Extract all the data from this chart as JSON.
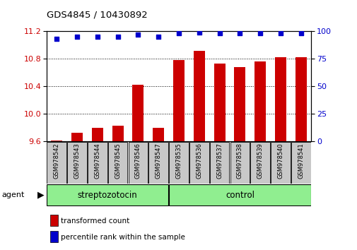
{
  "title": "GDS4845 / 10430892",
  "samples": [
    "GSM978542",
    "GSM978543",
    "GSM978544",
    "GSM978545",
    "GSM978546",
    "GSM978547",
    "GSM978535",
    "GSM978536",
    "GSM978537",
    "GSM978538",
    "GSM978539",
    "GSM978540",
    "GSM978541"
  ],
  "bar_values": [
    9.61,
    9.72,
    9.8,
    9.83,
    10.42,
    9.8,
    10.78,
    10.92,
    10.73,
    10.68,
    10.76,
    10.82,
    10.82
  ],
  "percentile_values": [
    93,
    95,
    95,
    95,
    97,
    95,
    98,
    99,
    98,
    98,
    98,
    98,
    98
  ],
  "groups": [
    {
      "label": "streptozotocin",
      "start": 0,
      "end": 6,
      "color": "#90EE90"
    },
    {
      "label": "control",
      "start": 6,
      "end": 13,
      "color": "#90EE90"
    }
  ],
  "ylim_left": [
    9.6,
    11.2
  ],
  "ylim_right": [
    0,
    100
  ],
  "yticks_left": [
    9.6,
    10.0,
    10.4,
    10.8,
    11.2
  ],
  "yticks_right": [
    0,
    25,
    50,
    75,
    100
  ],
  "bar_color": "#CC0000",
  "dot_color": "#0000CC",
  "bar_width": 0.55,
  "background_color": "#ffffff",
  "legend_items": [
    "transformed count",
    "percentile rank within the sample"
  ],
  "agent_label": "agent",
  "grid_color": "#000000",
  "label_box_color": "#C8C8C8",
  "group_border_color": "#000000"
}
